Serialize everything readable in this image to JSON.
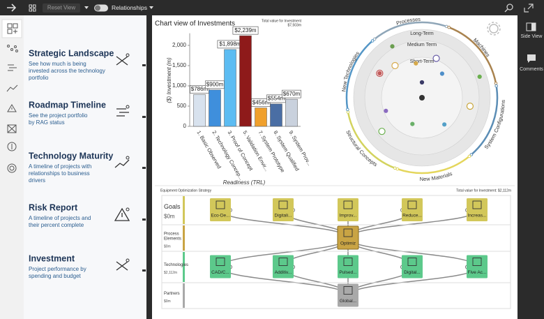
{
  "top_bar": {
    "reset_view": "Reset View",
    "relationships": "Relationships"
  },
  "right_bar": {
    "side_view": "Side View",
    "comments": "Comments"
  },
  "menu": [
    {
      "title": "Strategic Landscape",
      "description": [
        "See how much is being",
        "invested across the technology",
        "portfolio"
      ]
    },
    {
      "title": "Roadmap Timeline",
      "description": [
        "See the project portfolio",
        "by RAG status"
      ]
    },
    {
      "title": "Technology Maturity",
      "description": [
        "A timeline of projects with",
        "relationships to business",
        "drivers"
      ]
    },
    {
      "title": "Risk Report",
      "description": [
        "A timeline of projects and",
        "their percent complete"
      ]
    },
    {
      "title": "Investment",
      "description": [
        "Project performance by",
        "spending and budget"
      ]
    }
  ],
  "chart_data": {
    "type": "bar",
    "title": "Chart view of Investments",
    "total_label": "Total value for Investment",
    "total_value": "$7,503m",
    "x_label": "Readiness (TRL)",
    "y_label": "($) Investment (m)",
    "categories": [
      "1. Basic Observed",
      "2. Technology Concep...",
      "3. Proof of Concept",
      "5. Validation Envir...",
      "7. System Prototype",
      "8. System Qualified",
      "9. System Prov..."
    ],
    "values": [
      786,
      900,
      1898,
      2239,
      456,
      554,
      670
    ],
    "value_labels": [
      "$786m",
      "$900m",
      "$1,898m",
      "$2,239m",
      "$456m",
      "$554m",
      "$670m"
    ],
    "colors": [
      "#d8e2ee",
      "#3f8fdc",
      "#5cbcf2",
      "#8e1a1a",
      "#f0a02c",
      "#4a6ea4",
      "#c9d1dd"
    ],
    "ylim": [
      0,
      2300
    ],
    "yticks": [
      0,
      500,
      {
        "value": 1000,
        "label": "1,000"
      },
      {
        "value": 1500,
        "label": "1,500"
      },
      {
        "value": 2000,
        "label": "2,000"
      }
    ]
  },
  "radial": {
    "horizons": [
      "Long-Term",
      "Medium Term",
      "Short-Term"
    ],
    "sectors": [
      {
        "name": "Processes",
        "color": "#8fa6b8"
      },
      {
        "name": "Machines",
        "color": "#a9834f"
      },
      {
        "name": "System Configurations",
        "color": "#5b8db5"
      },
      {
        "name": "New Materials",
        "color": "#e4d65c"
      },
      {
        "name": "Structural Concepts",
        "color": "#d3d35e"
      },
      {
        "name": "New Technologies",
        "color": "#5496c6"
      }
    ]
  },
  "strategy": {
    "title": "Equipment Optimization Strategy",
    "total": "Total value for Investment: $2,112m",
    "lanes": [
      {
        "name": [
          "Goals"
        ],
        "value": "$0m",
        "color": "#d2c75a",
        "nodes": [
          "Eco-De...",
          "Digitali...",
          "Improv...",
          "Reduce...",
          "Increas..."
        ]
      },
      {
        "name": [
          "Process",
          "Elements"
        ],
        "value": "$0m",
        "color": "#c9a444",
        "nodes": [
          "Optimiz"
        ]
      },
      {
        "name": [
          "Technologies"
        ],
        "value": "$2,112m",
        "color": "#5cc98b",
        "nodes": [
          "CAD/C...",
          "Additiv...",
          "Pulsed...",
          "Digital...",
          "Five Ac..."
        ]
      },
      {
        "name": [
          "Partners"
        ],
        "value": "$0m",
        "color": "#a9a9a9",
        "nodes": [
          "Global..."
        ]
      }
    ]
  }
}
